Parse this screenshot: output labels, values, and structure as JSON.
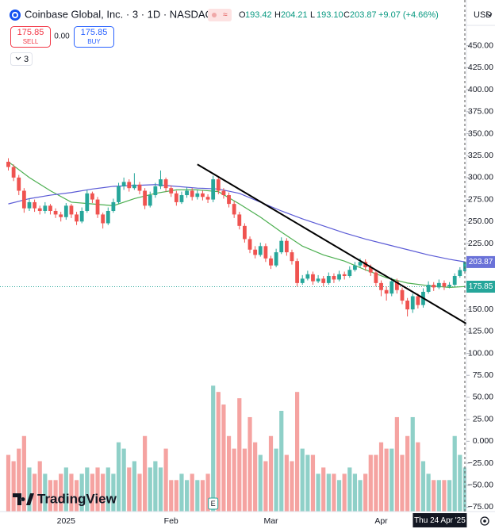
{
  "header": {
    "symbol": "Coinbase Global, Inc. · 3 · 1D · NASDAQ",
    "legend": [
      {
        "key": "O",
        "value": "193.42"
      },
      {
        "key": "H",
        "value": "204.21"
      },
      {
        "key": "L",
        "value": "193.10"
      },
      {
        "key": "C",
        "value": "203.87"
      }
    ],
    "change": "+9.07 (+4.66%)"
  },
  "trade": {
    "sell_price": "175.85",
    "sell": "SELL",
    "spread": "0.00",
    "buy_price": "175.85",
    "buy": "BUY",
    "indicators": "3"
  },
  "chart_data": {
    "type": "candlestick",
    "currency": "USD",
    "categories": [
      null,
      null,
      null,
      null,
      null,
      null,
      null,
      null,
      null,
      null,
      null,
      "2025",
      null,
      null,
      null,
      null,
      null,
      null,
      null,
      null,
      null,
      null,
      null,
      null,
      null,
      null,
      null,
      null,
      null,
      null,
      null,
      "Feb",
      null,
      null,
      null,
      null,
      null,
      null,
      null,
      null,
      null,
      null,
      null,
      null,
      null,
      null,
      null,
      null,
      null,
      null,
      "Mar",
      null,
      null,
      null,
      null,
      null,
      null,
      null,
      null,
      null,
      null,
      null,
      null,
      null,
      null,
      null,
      null,
      null,
      null,
      null,
      null,
      "Apr",
      null,
      null,
      null,
      null,
      null,
      null,
      null,
      null,
      null,
      null,
      null,
      null,
      null,
      null,
      null,
      null
    ],
    "ohlc": [
      [
        318,
        322,
        308,
        312
      ],
      [
        312,
        315,
        296,
        300
      ],
      [
        300,
        303,
        280,
        285
      ],
      [
        285,
        288,
        260,
        265
      ],
      [
        265,
        276,
        262,
        272
      ],
      [
        272,
        275,
        261,
        265
      ],
      [
        265,
        268,
        258,
        262
      ],
      [
        262,
        272,
        259,
        268
      ],
      [
        268,
        270,
        258,
        262
      ],
      [
        262,
        265,
        254,
        258
      ],
      [
        258,
        261,
        250,
        255
      ],
      [
        255,
        271,
        252,
        268
      ],
      [
        268,
        270,
        254,
        258
      ],
      [
        258,
        261,
        246,
        250
      ],
      [
        250,
        266,
        248,
        262
      ],
      [
        262,
        286,
        260,
        282
      ],
      [
        282,
        284,
        271,
        275
      ],
      [
        275,
        278,
        254,
        258
      ],
      [
        258,
        260,
        242,
        248
      ],
      [
        248,
        266,
        246,
        262
      ],
      [
        262,
        276,
        260,
        272
      ],
      [
        272,
        294,
        270,
        290
      ],
      [
        290,
        300,
        286,
        295
      ],
      [
        295,
        298,
        284,
        288
      ],
      [
        288,
        305,
        286,
        292
      ],
      [
        292,
        295,
        281,
        285
      ],
      [
        285,
        288,
        264,
        268
      ],
      [
        268,
        284,
        266,
        280
      ],
      [
        280,
        294,
        277,
        290
      ],
      [
        290,
        308,
        287,
        298
      ],
      [
        298,
        300,
        284,
        288
      ],
      [
        288,
        291,
        278,
        282
      ],
      [
        282,
        285,
        268,
        272
      ],
      [
        272,
        284,
        270,
        280
      ],
      [
        280,
        289,
        277,
        285
      ],
      [
        285,
        288,
        274,
        278
      ],
      [
        278,
        286,
        275,
        282
      ],
      [
        282,
        285,
        274,
        278
      ],
      [
        278,
        281,
        271,
        275
      ],
      [
        275,
        302,
        272,
        298
      ],
      [
        298,
        300,
        281,
        285
      ],
      [
        285,
        288,
        276,
        280
      ],
      [
        280,
        283,
        266,
        270
      ],
      [
        270,
        273,
        254,
        258
      ],
      [
        258,
        261,
        241,
        245
      ],
      [
        245,
        248,
        226,
        230
      ],
      [
        230,
        233,
        214,
        218
      ],
      [
        218,
        222,
        208,
        212
      ],
      [
        212,
        226,
        210,
        222
      ],
      [
        222,
        225,
        204,
        208
      ],
      [
        208,
        211,
        196,
        200
      ],
      [
        200,
        219,
        198,
        215
      ],
      [
        215,
        232,
        213,
        228
      ],
      [
        228,
        231,
        211,
        215
      ],
      [
        215,
        218,
        201,
        205
      ],
      [
        205,
        208,
        176,
        180
      ],
      [
        180,
        189,
        178,
        185
      ],
      [
        185,
        194,
        183,
        190
      ],
      [
        190,
        193,
        178,
        182
      ],
      [
        182,
        189,
        180,
        185
      ],
      [
        185,
        188,
        176,
        180
      ],
      [
        180,
        192,
        178,
        188
      ],
      [
        188,
        191,
        180,
        184
      ],
      [
        184,
        194,
        182,
        190
      ],
      [
        190,
        193,
        184,
        188
      ],
      [
        188,
        199,
        186,
        195
      ],
      [
        195,
        204,
        193,
        200
      ],
      [
        200,
        208,
        198,
        204
      ],
      [
        204,
        207,
        194,
        198
      ],
      [
        198,
        201,
        188,
        192
      ],
      [
        192,
        195,
        176,
        180
      ],
      [
        180,
        183,
        165,
        172
      ],
      [
        172,
        176,
        160,
        168
      ],
      [
        168,
        186,
        165,
        182
      ],
      [
        182,
        185,
        168,
        172
      ],
      [
        172,
        175,
        156,
        160
      ],
      [
        160,
        163,
        142,
        150
      ],
      [
        150,
        168,
        146,
        165
      ],
      [
        165,
        168,
        151,
        155
      ],
      [
        155,
        174,
        152,
        170
      ],
      [
        170,
        182,
        168,
        178
      ],
      [
        178,
        181,
        171,
        175
      ],
      [
        175,
        184,
        173,
        180
      ],
      [
        180,
        183,
        172,
        176
      ],
      [
        176,
        181,
        174,
        178
      ],
      [
        178,
        191,
        176,
        188
      ],
      [
        188,
        198,
        186,
        194.8
      ],
      [
        193.42,
        204.21,
        193.1,
        203.87
      ]
    ],
    "volume": [
      9,
      8,
      10,
      12,
      7,
      6,
      8,
      6,
      5,
      5,
      6,
      7,
      6,
      5,
      6,
      7,
      6,
      7,
      6,
      7,
      6,
      11,
      10,
      7,
      8,
      6,
      12,
      7,
      8,
      7,
      10,
      5,
      5,
      6,
      5,
      6,
      5,
      5,
      6,
      20,
      19,
      17,
      12,
      10,
      18,
      10,
      15,
      11,
      9,
      8,
      12,
      10,
      16,
      9,
      8,
      19,
      10,
      9,
      9,
      6,
      7,
      6,
      6,
      5,
      6,
      7,
      6,
      5,
      6,
      9,
      9,
      11,
      10,
      10,
      15,
      9,
      12,
      15,
      11,
      8,
      6,
      5,
      5,
      5,
      5,
      12,
      9,
      7
    ],
    "volume_lim": [
      0,
      80
    ],
    "ylim": [
      -80,
      493
    ],
    "yticks": [
      {
        "value": 450,
        "label": "450.00"
      },
      {
        "value": 425,
        "label": "425.00"
      },
      {
        "value": 400,
        "label": "400.00"
      },
      {
        "value": 375,
        "label": "375.00"
      },
      {
        "value": 350,
        "label": "350.00"
      },
      {
        "value": 325,
        "label": "325.00"
      },
      {
        "value": 300,
        "label": "300.00"
      },
      {
        "value": 275,
        "label": "275.00"
      },
      {
        "value": 250,
        "label": "250.00"
      },
      {
        "value": 225,
        "label": "225.00"
      },
      {
        "value": 200,
        "label": "200.00"
      },
      {
        "value": 175,
        "label": "175.00"
      },
      {
        "value": 150,
        "label": "150.00"
      },
      {
        "value": 125,
        "label": "125.00"
      },
      {
        "value": 100,
        "label": "100.00"
      },
      {
        "value": 75,
        "label": "75.00"
      },
      {
        "value": 50,
        "label": "50.00"
      },
      {
        "value": 25,
        "label": "25.00"
      },
      {
        "value": 0,
        "label": "0.000"
      },
      {
        "value": -25,
        "label": "−25.00"
      },
      {
        "value": -50,
        "label": "−50.00"
      },
      {
        "value": -75,
        "label": "−75.00"
      }
    ],
    "colors": {
      "up": "#26a69a",
      "down": "#ef5350",
      "up_volume": "#8fd0c8",
      "down_volume": "#f5a3a1"
    },
    "moving_averages": [
      {
        "color": "#4caf50",
        "x": [
          0,
          4,
          8,
          12,
          16,
          20,
          24,
          28,
          32,
          36,
          40,
          44,
          48,
          52,
          56,
          60,
          64,
          68,
          72,
          76,
          80,
          84,
          87
        ],
        "values": [
          318,
          300,
          285,
          272,
          270,
          268,
          276,
          282,
          286,
          286,
          284,
          270,
          255,
          238,
          222,
          212,
          205,
          195,
          186,
          180,
          177,
          175,
          176
        ]
      },
      {
        "color": "#5b5bd6",
        "x": [
          0,
          4,
          8,
          12,
          16,
          20,
          24,
          28,
          32,
          36,
          40,
          44,
          48,
          52,
          56,
          60,
          64,
          68,
          72,
          76,
          80,
          84,
          87
        ],
        "values": [
          270,
          276,
          280,
          283,
          287,
          290,
          291,
          292,
          290,
          288,
          287,
          282,
          272,
          262,
          253,
          245,
          237,
          230,
          224,
          218,
          212,
          207,
          204
        ]
      }
    ],
    "trendline": {
      "x": [
        36,
        88
      ],
      "values": [
        315,
        131
      ],
      "color": "#000000"
    },
    "price_line": {
      "value": 175.85,
      "color": "#26a69a"
    },
    "price_labels": [
      {
        "value": 203.87,
        "color": "#6a72d8"
      },
      {
        "value": 175.85,
        "color": "#26a69a"
      }
    ],
    "crosshair_label": "Thu 24 Apr '25",
    "crosshair_x": 87,
    "earnings_marker": "E",
    "earnings_x": 39,
    "brand": "TradingView"
  }
}
